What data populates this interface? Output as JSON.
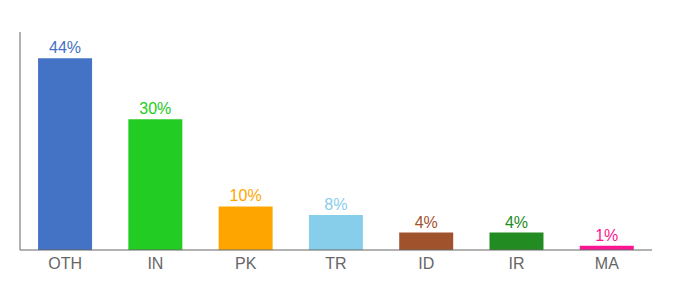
{
  "chart_data": {
    "type": "bar",
    "categories": [
      "OTH",
      "IN",
      "PK",
      "TR",
      "ID",
      "IR",
      "MA"
    ],
    "values": [
      44,
      30,
      10,
      8,
      4,
      4,
      1
    ],
    "value_labels": [
      "44%",
      "30%",
      "10%",
      "8%",
      "4%",
      "4%",
      "1%"
    ],
    "colors": [
      "#4472C4",
      "#22CC22",
      "#FFA500",
      "#87CEEB",
      "#A0522D",
      "#228B22",
      "#FF1493"
    ],
    "ylim": [
      0,
      50
    ],
    "data_labels": true,
    "tick_labels": "x"
  }
}
